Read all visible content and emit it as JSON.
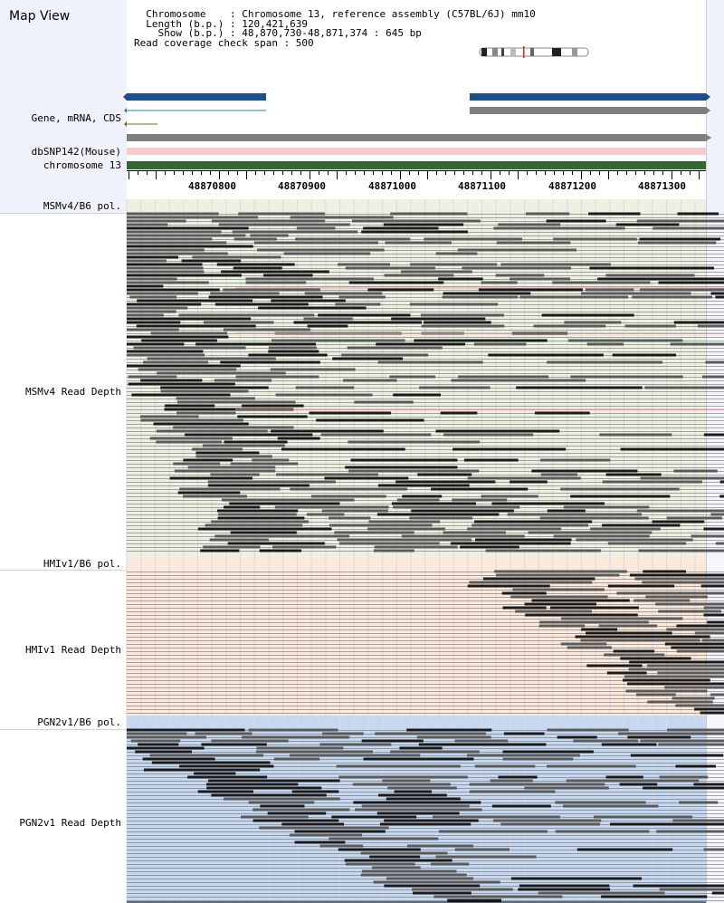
{
  "title": "Map View",
  "header": {
    "chromosome": "  Chromosome    : Chromosome 13, reference assembly (C57BL/6J) mm10",
    "length": "  Length (b.p.) : 120,421,639",
    "show": "    Show (b.p.) : 48,870,730-48,871,374 : 645 bp",
    "span": "Read coverage check span : 500"
  },
  "tracks": {
    "gene": "Gene, mRNA, CDS",
    "dbsnp": "dbSNP142(Mouse)",
    "chromosome": "chromosome 13",
    "msm_pol": "MSMv4/B6 pol.",
    "msm_depth": "MSMv4 Read Depth",
    "hmi_pol": "HMIv1/B6 pol.",
    "hmi_depth": "HMIv1 Read Depth",
    "pgn_pol": "PGN2v1/B6 pol.",
    "pgn_depth": "PGN2v1 Read Depth"
  },
  "axis_ticks": [
    "48870800",
    "48870900",
    "48871000",
    "48871100",
    "48871200",
    "48871300"
  ],
  "colors": {
    "left_panel": "#f0f2fb",
    "gene_blue": "#1f4e8c",
    "gene_gray": "#7f7f7f",
    "snp_pink": "#f5cbd0",
    "chrom_green": "#336633",
    "msm_bg": "#edf1e2",
    "hmi_bg": "#fbe9dc",
    "pgn_bg": "#c6d8ef",
    "read_dark": "#1a1a1a",
    "read_gray": "#555555"
  }
}
